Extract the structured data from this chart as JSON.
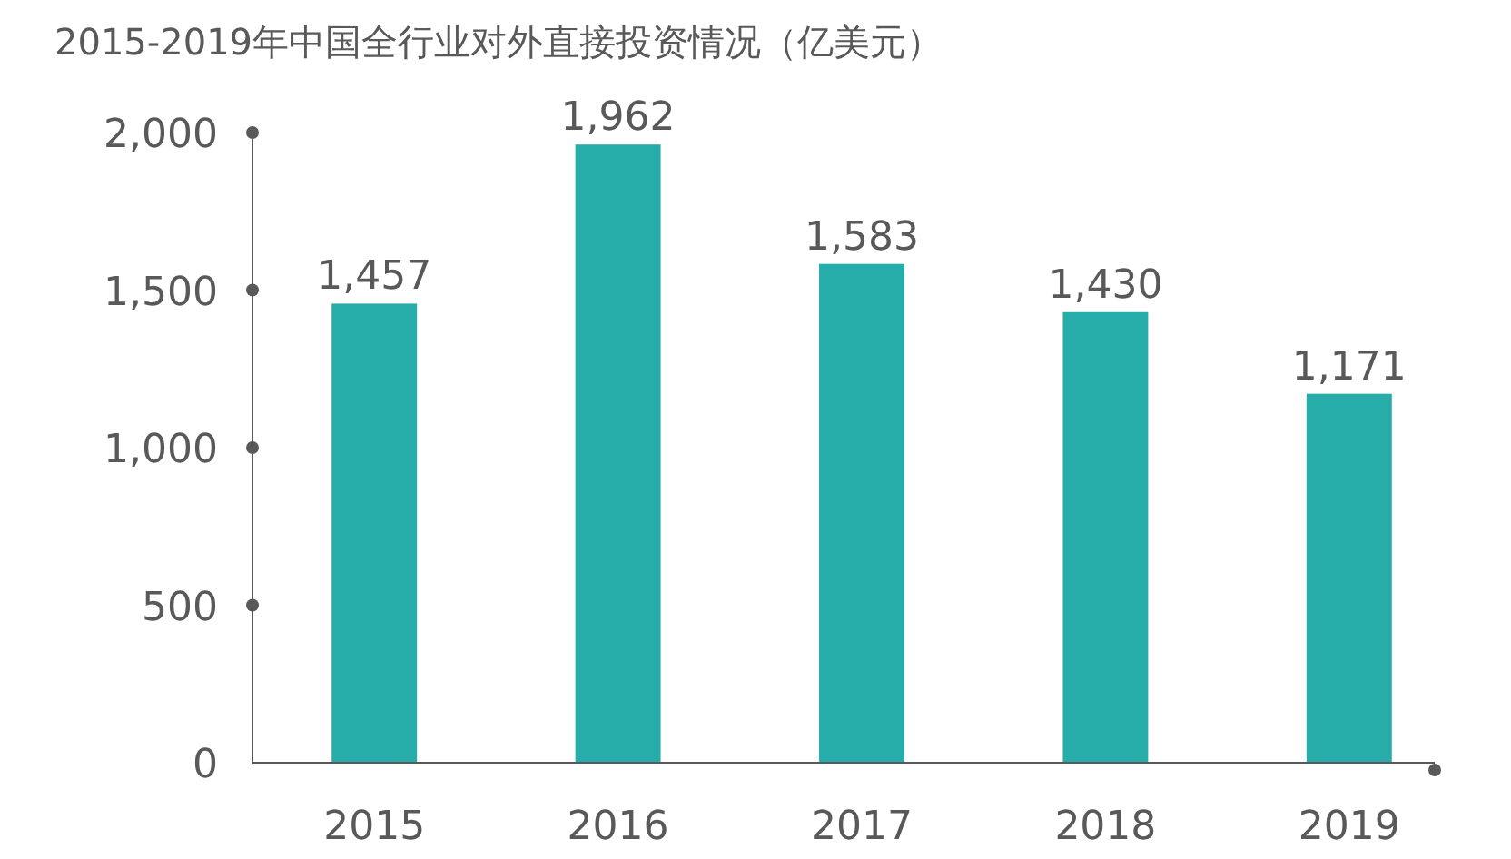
{
  "chart_data": {
    "type": "bar",
    "title": "2015-2019年中国全行业对外直接投资情况（亿美元）",
    "categories": [
      "2015",
      "2016",
      "2017",
      "2018",
      "2019"
    ],
    "values": [
      1457,
      1962,
      1583,
      1430,
      1171
    ],
    "color": "#26ada9",
    "ylim": [
      0,
      2000
    ],
    "yticks": [
      {
        "value": 0,
        "label": "0"
      },
      {
        "value": 500,
        "label": "500"
      },
      {
        "value": 1000,
        "label": "1,000"
      },
      {
        "value": 1500,
        "label": "1,500"
      },
      {
        "value": 2000,
        "label": "2,000"
      }
    ],
    "value_labels": [
      "1,457",
      "1,962",
      "1,583",
      "1,430",
      "1,171"
    ],
    "grid": false
  }
}
